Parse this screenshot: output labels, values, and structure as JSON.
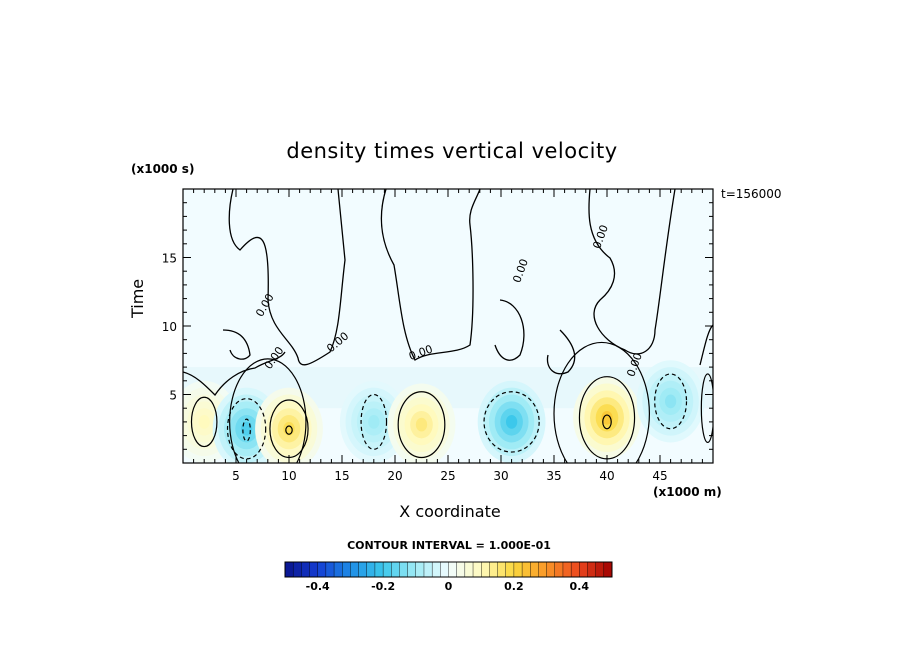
{
  "chart_data": {
    "type": "heatmap",
    "title": "density times vertical velocity",
    "xlabel": "X coordinate",
    "ylabel": "Time",
    "x_unit": "(x1000 m)",
    "y_unit": "(x1000 s)",
    "timestamp": "t=156000",
    "xlim": [
      0,
      50
    ],
    "ylim": [
      0,
      20
    ],
    "x_ticks": [
      5,
      10,
      15,
      20,
      25,
      30,
      35,
      40,
      45
    ],
    "y_ticks": [
      5,
      10,
      15
    ],
    "contour_interval_label": "CONTOUR INTERVAL = 1.000E-01",
    "contour_labels": [
      "0.00",
      "0.00",
      "0.00",
      "0.00",
      "0.00",
      "0.00",
      "0.00"
    ],
    "colorbar": {
      "min": -0.5,
      "max": 0.5,
      "step": 0.025,
      "ticks": [
        -0.4,
        -0.2,
        0,
        0.2,
        0.4
      ],
      "tick_labels": [
        "-0.4",
        "-0.2",
        "0",
        "0.2",
        "0.4"
      ]
    },
    "features": [
      {
        "x": 2,
        "y": 3.0,
        "value": 0.1
      },
      {
        "x": 6,
        "y": 2.5,
        "value": -0.18
      },
      {
        "x": 10,
        "y": 2.5,
        "value": 0.18
      },
      {
        "x": 18,
        "y": 3.0,
        "value": -0.1
      },
      {
        "x": 22.5,
        "y": 2.8,
        "value": 0.15
      },
      {
        "x": 31,
        "y": 3.0,
        "value": -0.2
      },
      {
        "x": 40,
        "y": 3.3,
        "value": 0.22
      },
      {
        "x": 46,
        "y": 4.5,
        "value": -0.12
      }
    ]
  }
}
